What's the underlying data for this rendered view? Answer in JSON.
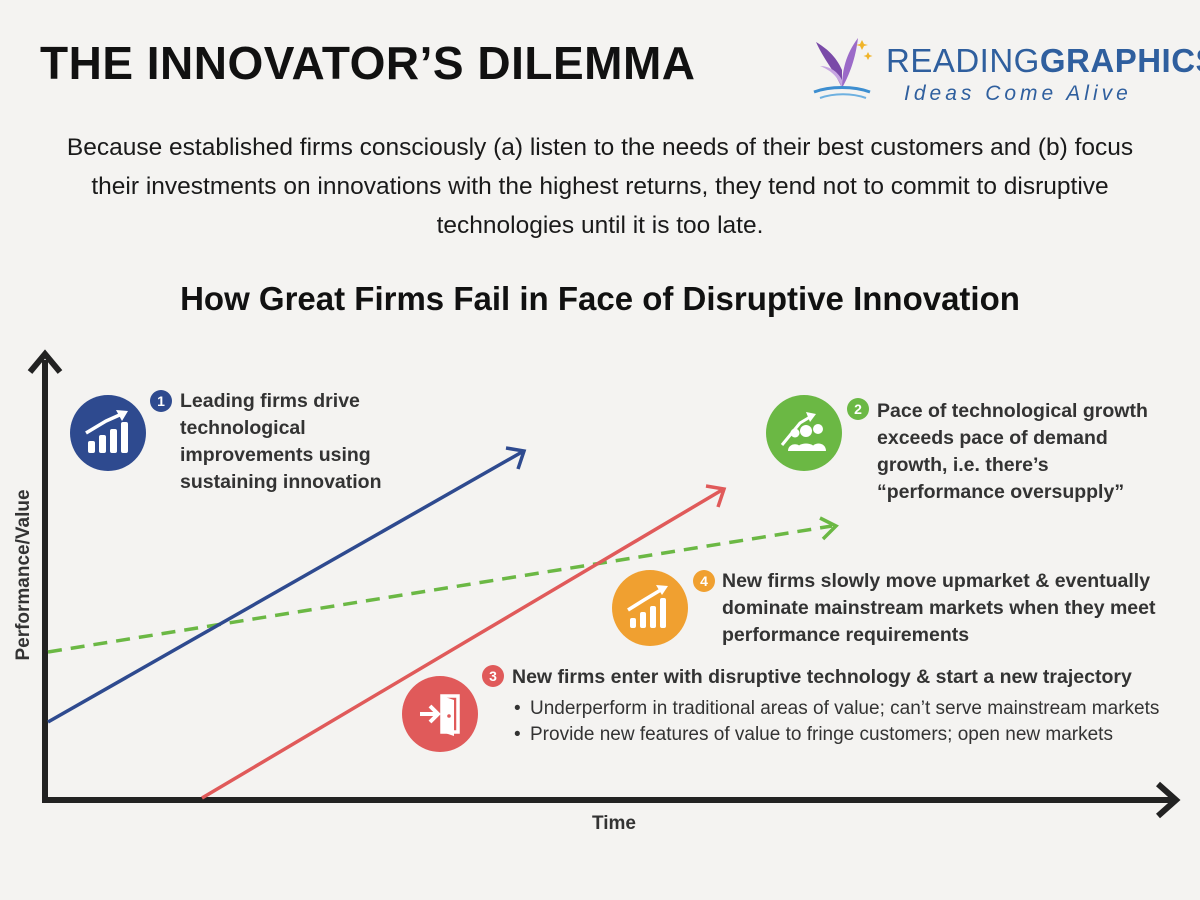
{
  "header": {
    "title": "THE INNOVATOR’S DILEMMA",
    "brand_light": "READING",
    "brand_bold": "GRAPHICS",
    "brand_tagline": "Ideas Come Alive"
  },
  "intro": "Because established firms consciously (a) listen to the needs of their best customers and (b) focus their investments on innovations with the highest returns, they tend not to commit to disruptive technologies until it is too late.",
  "diagram": {
    "title": "How Great Firms Fail in Face of Disruptive Innovation",
    "ylabel": "Performance/Value",
    "xlabel": "Time",
    "points": [
      {
        "number": "1",
        "text": "Leading firms drive technological improvements using sustaining innovation",
        "color": "#2e4a8f",
        "icon": "growth-chart-icon"
      },
      {
        "number": "2",
        "text": "Pace of technological growth exceeds pace of demand growth, i.e. there’s “performance oversupply”",
        "color": "#6bb844",
        "icon": "people-growth-icon"
      },
      {
        "number": "3",
        "text": "New firms enter with disruptive technology & start a new trajectory",
        "color": "#e05a5a",
        "icon": "door-enter-icon",
        "bullets": [
          "Underperform in traditional areas of value; can’t serve mainstream markets",
          "Provide new features of value to fringe customers; open new markets"
        ]
      },
      {
        "number": "4",
        "text": "New firms slowly move upmarket & eventually dominate mainstream markets when they meet performance requirements",
        "color": "#f0a030",
        "icon": "growth-chart-icon"
      }
    ],
    "lines": [
      {
        "role": "sustaining-innovation",
        "color": "#2e4a8f",
        "style": "solid"
      },
      {
        "role": "disruptive-technology",
        "color": "#e05a5a",
        "style": "solid"
      },
      {
        "role": "market-demand",
        "color": "#6bb844",
        "style": "dashed"
      }
    ]
  }
}
